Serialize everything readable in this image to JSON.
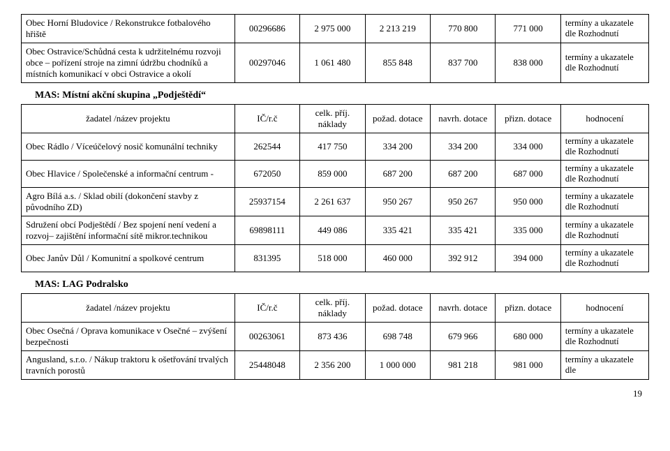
{
  "colors": {
    "border": "#000000",
    "background": "#ffffff",
    "text": "#000000"
  },
  "note_text": "termíny a ukazatele dle Rozhodnutí",
  "note_text_short": "termíny a ukazatele dle",
  "topTable": {
    "rows": [
      {
        "name": "Obec Horní Bludovice / Rekonstrukce fotbalového hřiště",
        "ic": "00296686",
        "v1": "2 975 000",
        "v2": "2 213 219",
        "v3": "770 800",
        "v4": "771 000"
      },
      {
        "name": "Obec Ostravice/Schůdná cesta k udržitelnému rozvoji obce – pořízení stroje na zimní údržbu chodníků a místních komunikací v obci Ostravice a okolí",
        "ic": "00297046",
        "v1": "1 061 480",
        "v2": "855 848",
        "v3": "837 700",
        "v4": "838 000"
      }
    ]
  },
  "mas1": {
    "title": "MAS: Místní akční skupina „Podještědí“",
    "headers": {
      "name": "žadatel /název projektu",
      "ic": "IČ/r.č",
      "v1": "celk. příj. náklady",
      "v2": "požad. dotace",
      "v3": "navrh. dotace",
      "v4": "přizn. dotace",
      "note": "hodnocení"
    },
    "rows": [
      {
        "name": "Obec Rádlo / Víceúčelový nosič komunální techniky",
        "ic": "262544",
        "v1": "417 750",
        "v2": "334 200",
        "v3": "334 200",
        "v4": "334 000"
      },
      {
        "name": "Obec Hlavice / Společenské a informační centrum -",
        "ic": "672050",
        "v1": "859 000",
        "v2": "687 200",
        "v3": "687 200",
        "v4": "687 000"
      },
      {
        "name": "Agro Bílá a.s. / Sklad obilí  (dokončení stavby z původního ZD)",
        "ic": "25937154",
        "v1": "2 261 637",
        "v2": "950 267",
        "v3": "950 267",
        "v4": "950 000"
      },
      {
        "name": "Sdružení obcí Podještědí / Bez spojení není vedení a rozvoj– zajištění informační sítě mikror.technikou",
        "ic": "69898111",
        "v1": "449 086",
        "v2": "335 421",
        "v3": "335 421",
        "v4": "335 000"
      },
      {
        "name": "Obec Janův Důl / Komunitní a spolkové centrum",
        "ic": "831395",
        "v1": "518 000",
        "v2": "460 000",
        "v3": "392 912",
        "v4": "394 000"
      }
    ]
  },
  "mas2": {
    "title": "MAS: LAG Podralsko",
    "headers": {
      "name": "žadatel /název projektu",
      "ic": "IČ/r.č",
      "v1": "celk. příj. náklady",
      "v2": "požad. dotace",
      "v3": "navrh. dotace",
      "v4": "přizn. dotace",
      "note": "hodnocení"
    },
    "rows": [
      {
        "name": "Obec Osečná / Oprava komunikace v Osečné – zvýšení bezpečnosti",
        "ic": "00263061",
        "v1": "873 436",
        "v2": "698 748",
        "v3": "679 966",
        "v4": "680 000",
        "notekey": "note_text"
      },
      {
        "name": "Angusland, s.r.o. / Nákup traktoru k ošetřování trvalých travních porostů",
        "ic": "25448048",
        "v1": "2 356 200",
        "v2": "1 000 000",
        "v3": "981 218",
        "v4": "981 000",
        "notekey": "note_text_short"
      }
    ]
  },
  "page": "19"
}
